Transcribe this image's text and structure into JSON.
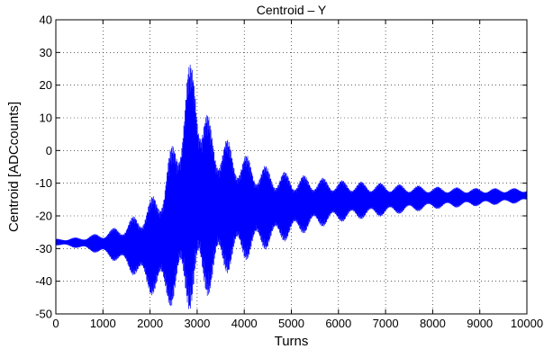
{
  "chart_data": {
    "type": "line",
    "title": "Centroid – Y",
    "xlabel": "Turns",
    "ylabel": "Centroid [ADCcounts]",
    "xlim": [
      0,
      10000
    ],
    "ylim": [
      -50,
      40
    ],
    "xticks": [
      0,
      1000,
      2000,
      3000,
      4000,
      5000,
      6000,
      7000,
      8000,
      9000,
      10000
    ],
    "yticks": [
      -50,
      -40,
      -30,
      -20,
      -10,
      0,
      10,
      20,
      30,
      40
    ],
    "grid": true,
    "series": [
      {
        "color": "#0000ff",
        "envelope": {
          "x": [
            0,
            500,
            1000,
            1500,
            2000,
            2300,
            2600,
            2800,
            2950,
            3100,
            3300,
            3600,
            4000,
            4500,
            5000,
            5500,
            6000,
            7000,
            8000,
            9000,
            10000
          ],
          "upper": [
            -27,
            -26.5,
            -25,
            -22,
            -15,
            -7,
            10,
            25,
            30,
            17,
            8,
            4,
            -1,
            -5,
            -7,
            -8,
            -9,
            -10,
            -11,
            -11.5,
            -11.5
          ],
          "lower": [
            -29,
            -30,
            -32,
            -36,
            -44,
            -47,
            -49,
            -49,
            -49,
            -48,
            -43,
            -38,
            -34,
            -30,
            -27,
            -24,
            -22,
            -20,
            -18,
            -17,
            -16
          ]
        }
      }
    ]
  }
}
